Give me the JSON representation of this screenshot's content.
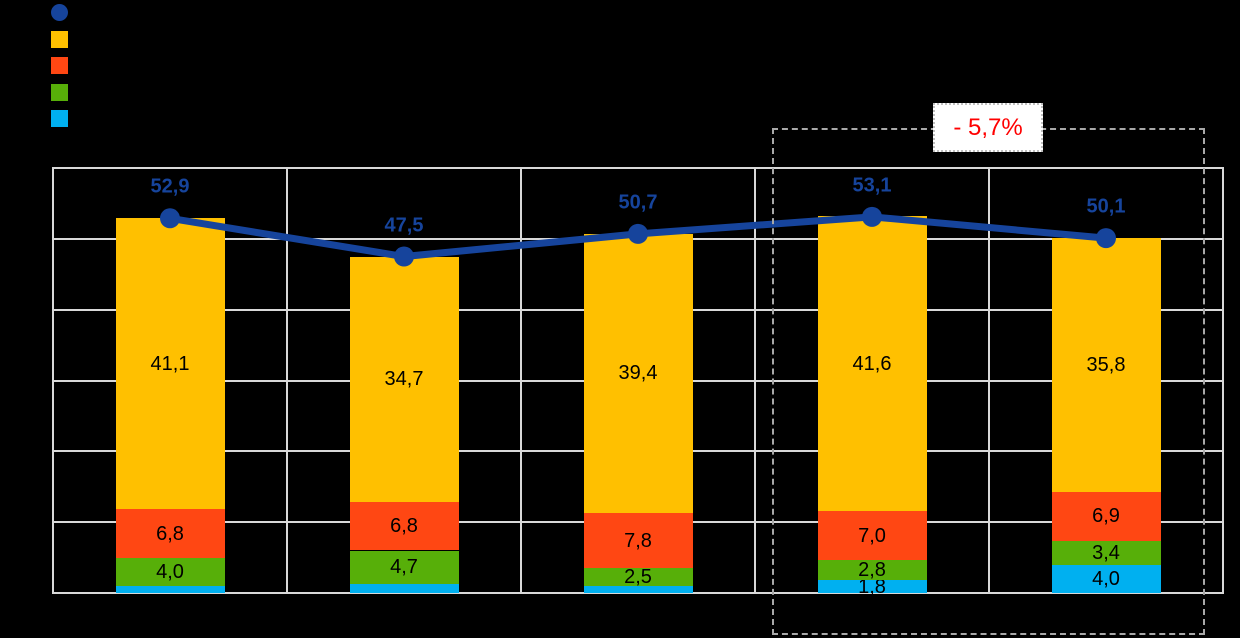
{
  "annotation": {
    "text": "- 5,7%",
    "text_color": "#FF0000",
    "box_fill": "#FFFFFF",
    "box_border": "#BFBFBF"
  },
  "colors": {
    "background": "#000000",
    "grid": "#D9D9D9",
    "dashed_region": "#A8A8A8",
    "line_series": "#16449C",
    "orange": "#FFC000",
    "red_orange": "#FF4713",
    "green": "#57AF09",
    "cyan": "#00B0F0"
  },
  "legend": {
    "items": [
      {
        "name": "line-series-marker",
        "shape": "circle",
        "color": "#16449C",
        "label": ""
      },
      {
        "name": "orange-series-swatch",
        "shape": "square",
        "color": "#FFC000",
        "label": ""
      },
      {
        "name": "red-series-swatch",
        "shape": "square",
        "color": "#FF4713",
        "label": ""
      },
      {
        "name": "green-series-swatch",
        "shape": "square",
        "color": "#57AF09",
        "label": ""
      },
      {
        "name": "cyan-series-swatch",
        "shape": "square",
        "color": "#00B0F0",
        "label": ""
      }
    ]
  },
  "chart_data": {
    "type": "bar",
    "stacked": true,
    "title": "",
    "xlabel": "",
    "ylabel": "",
    "categories": [
      "",
      "",
      "",
      "",
      ""
    ],
    "ylim": [
      0,
      60
    ],
    "y_step": 10,
    "grid": true,
    "y_tick_labels_visible": false,
    "series": [
      {
        "name": "segment-cyan",
        "color": "#00B0F0",
        "values": [
          1.0,
          1.3,
          1.0,
          1.8,
          4.0
        ],
        "labels": [
          "",
          "",
          "",
          "1,8",
          "4,0"
        ]
      },
      {
        "name": "segment-green",
        "color": "#57AF09",
        "values": [
          4.0,
          4.7,
          2.5,
          2.8,
          3.4
        ],
        "labels": [
          "4,0",
          "4,7",
          "2,5",
          "2,8",
          "3,4"
        ]
      },
      {
        "name": "segment-red",
        "color": "#FF4713",
        "values": [
          6.8,
          6.8,
          7.8,
          7.0,
          6.9
        ],
        "labels": [
          "6,8",
          "6,8",
          "7,8",
          "7,0",
          "6,9"
        ]
      },
      {
        "name": "segment-orange",
        "color": "#FFC000",
        "values": [
          41.1,
          34.7,
          39.4,
          41.6,
          35.8
        ],
        "labels": [
          "41,1",
          "34,7",
          "39,4",
          "41,6",
          "35,8"
        ]
      }
    ],
    "line_series": {
      "name": "total-line",
      "color": "#16449C",
      "values": [
        52.9,
        47.5,
        50.7,
        53.1,
        50.1
      ],
      "labels": [
        "52,9",
        "47,5",
        "50,7",
        "53,1",
        "50,1"
      ]
    },
    "highlight_region": {
      "covers_categories": [
        3,
        4
      ],
      "label": "- 5,7%"
    }
  }
}
